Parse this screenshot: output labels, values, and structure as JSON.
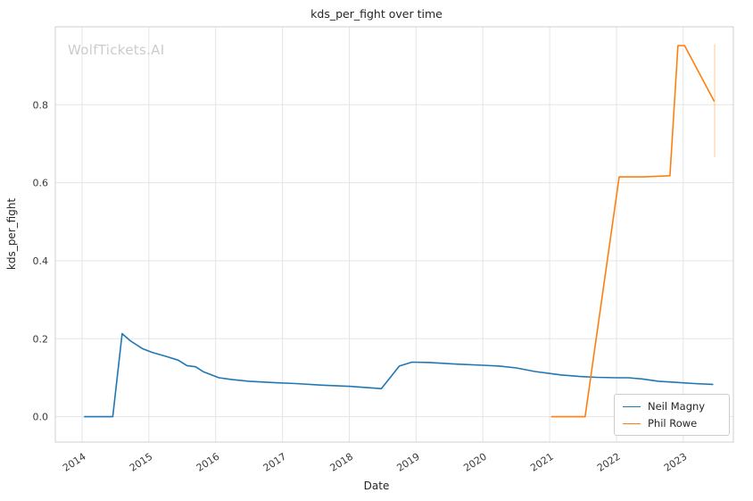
{
  "figure": {
    "title": "kds_per_fight over time",
    "watermark": "WolfTickets.AI",
    "xlabel": "Date",
    "ylabel": "kds_per_fight"
  },
  "chart_data": {
    "type": "line",
    "title": "kds_per_fight over time",
    "xlabel": "Date",
    "ylabel": "kds_per_fight",
    "grid": true,
    "legend_position": "lower right",
    "xlim": [
      2013.6,
      2023.75
    ],
    "ylim": [
      -0.065,
      1.0
    ],
    "xticks": [
      2014,
      2015,
      2016,
      2017,
      2018,
      2019,
      2020,
      2021,
      2022,
      2023
    ],
    "yticks": [
      0.0,
      0.2,
      0.4,
      0.6,
      0.8
    ],
    "series": [
      {
        "name": "Neil Magny",
        "color": "#1f77b4",
        "points": [
          [
            2014.04,
            0.0
          ],
          [
            2014.25,
            0.0
          ],
          [
            2014.46,
            0.0
          ],
          [
            2014.6,
            0.213
          ],
          [
            2014.72,
            0.195
          ],
          [
            2014.9,
            0.175
          ],
          [
            2015.05,
            0.165
          ],
          [
            2015.25,
            0.155
          ],
          [
            2015.44,
            0.145
          ],
          [
            2015.57,
            0.131
          ],
          [
            2015.7,
            0.128
          ],
          [
            2015.82,
            0.115
          ],
          [
            2016.05,
            0.1
          ],
          [
            2016.25,
            0.095
          ],
          [
            2016.5,
            0.091
          ],
          [
            2016.9,
            0.087
          ],
          [
            2017.2,
            0.085
          ],
          [
            2017.6,
            0.081
          ],
          [
            2018.0,
            0.078
          ],
          [
            2018.25,
            0.075
          ],
          [
            2018.48,
            0.072
          ],
          [
            2018.75,
            0.13
          ],
          [
            2018.94,
            0.14
          ],
          [
            2019.2,
            0.139
          ],
          [
            2019.6,
            0.135
          ],
          [
            2020.0,
            0.132
          ],
          [
            2020.25,
            0.13
          ],
          [
            2020.5,
            0.125
          ],
          [
            2020.78,
            0.116
          ],
          [
            2021.0,
            0.111
          ],
          [
            2021.18,
            0.107
          ],
          [
            2021.45,
            0.103
          ],
          [
            2021.7,
            0.101
          ],
          [
            2022.0,
            0.1
          ],
          [
            2022.18,
            0.1
          ],
          [
            2022.38,
            0.097
          ],
          [
            2022.63,
            0.091
          ],
          [
            2022.9,
            0.088
          ],
          [
            2023.17,
            0.085
          ],
          [
            2023.44,
            0.083
          ]
        ]
      },
      {
        "name": "Phil Rowe",
        "color": "#ff7f0e",
        "points": [
          [
            2021.03,
            0.0
          ],
          [
            2021.3,
            0.0
          ],
          [
            2021.53,
            0.0
          ],
          [
            2022.04,
            0.615
          ],
          [
            2022.4,
            0.615
          ],
          [
            2022.8,
            0.618
          ],
          [
            2022.92,
            0.952
          ],
          [
            2023.02,
            0.952
          ],
          [
            2023.46,
            0.81
          ]
        ]
      }
    ],
    "annotations": [
      {
        "type": "segment",
        "x1": 2023.47,
        "y1": 0.665,
        "x2": 2023.47,
        "y2": 0.955,
        "color": "#ff7f0e",
        "opacity": 0.35
      }
    ]
  }
}
